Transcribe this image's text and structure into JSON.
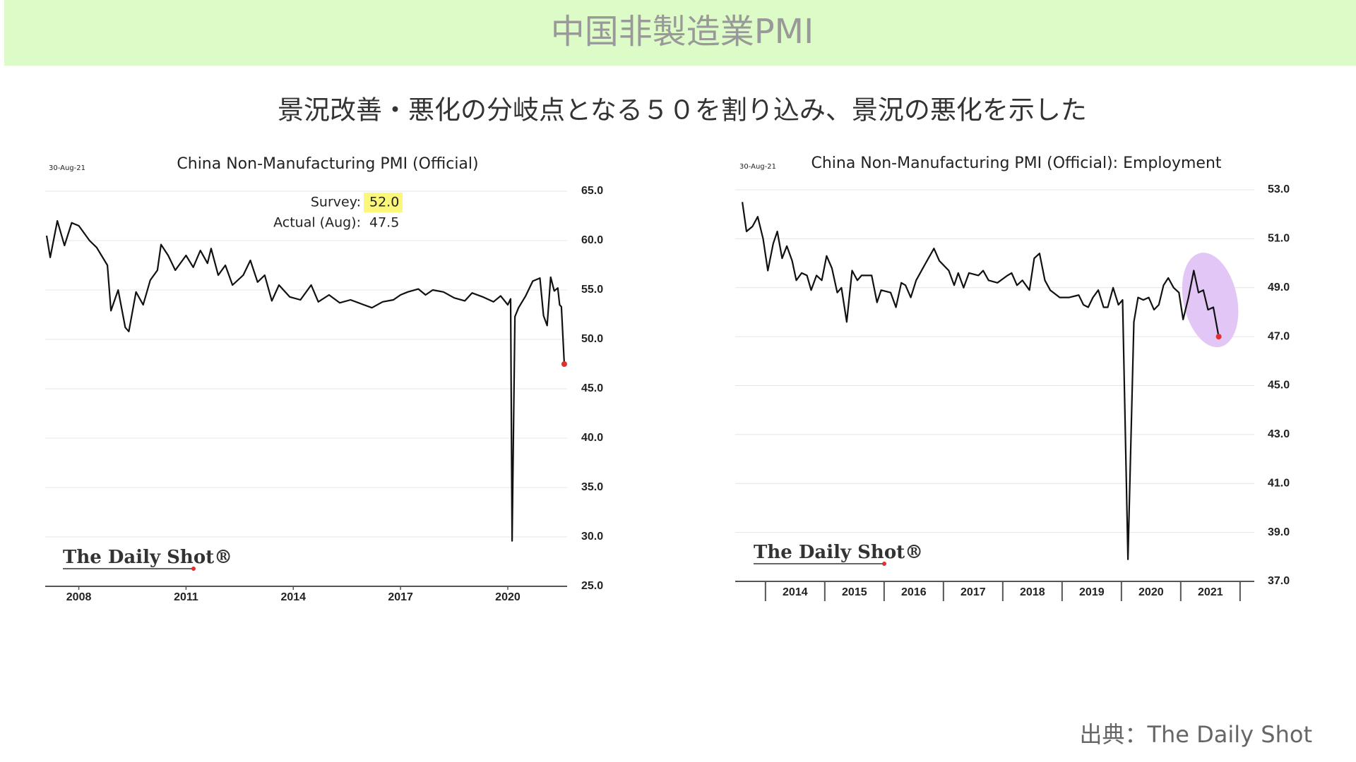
{
  "header": {
    "title": "中国非製造業PMI"
  },
  "subtitle": "景況改善・悪化の分岐点となる５０を割り込み、景況の悪化を示した",
  "source": "出典：The Daily Shot",
  "chart_data": [
    {
      "type": "line",
      "title": "China Non-Manufacturing PMI (Official)",
      "date_label": "30-Aug-21",
      "watermark": "The Daily Shot®",
      "annotations": [
        {
          "label": "Survey:",
          "value": "52.0"
        },
        {
          "label": "Actual (Aug):",
          "value": "47.5"
        }
      ],
      "x": [
        2007.1,
        2007.2,
        2007.4,
        2007.6,
        2007.8,
        2008.0,
        2008.3,
        2008.5,
        2008.8,
        2008.9,
        2009.1,
        2009.3,
        2009.4,
        2009.6,
        2009.8,
        2010.0,
        2010.2,
        2010.3,
        2010.5,
        2010.7,
        2010.9,
        2011.0,
        2011.2,
        2011.4,
        2011.6,
        2011.7,
        2011.9,
        2012.1,
        2012.3,
        2012.6,
        2012.8,
        2013.0,
        2013.2,
        2013.4,
        2013.6,
        2013.9,
        2014.2,
        2014.5,
        2014.7,
        2015.0,
        2015.3,
        2015.6,
        2015.9,
        2016.2,
        2016.5,
        2016.8,
        2017.0,
        2017.2,
        2017.5,
        2017.7,
        2017.9,
        2018.2,
        2018.5,
        2018.8,
        2019.0,
        2019.3,
        2019.6,
        2019.8,
        2020.0,
        2020.08,
        2020.12,
        2020.2,
        2020.3,
        2020.5,
        2020.7,
        2020.9,
        2021.0,
        2021.1,
        2021.2,
        2021.3,
        2021.4,
        2021.45,
        2021.5,
        2021.58
      ],
      "series": [
        {
          "name": "China Non-Manufacturing PMI",
          "color": "#111111",
          "values": [
            60.5,
            58.3,
            62,
            59.5,
            61.8,
            61.5,
            60,
            59.3,
            57.5,
            52.9,
            55,
            51.2,
            50.8,
            54.8,
            53.5,
            56,
            57,
            59.6,
            58.5,
            57,
            58,
            58.5,
            57.3,
            59,
            57.7,
            59.2,
            56.5,
            57.5,
            55.5,
            56.5,
            58,
            55.8,
            56.5,
            53.9,
            55.5,
            54.3,
            54,
            55.5,
            53.8,
            54.5,
            53.7,
            54,
            53.6,
            53.2,
            53.8,
            54,
            54.5,
            54.8,
            55.1,
            54.5,
            55,
            54.8,
            54.2,
            53.9,
            54.7,
            54.3,
            53.8,
            54.4,
            53.5,
            54.1,
            29.6,
            52.3,
            53.2,
            54.4,
            55.9,
            56.2,
            52.4,
            51.4,
            56.3,
            54.9,
            55.2,
            53.5,
            53.3,
            47.5
          ]
        }
      ],
      "xlim": [
        2007.06,
        2021.66
      ],
      "xticks": [
        2008,
        2011,
        2014,
        2017,
        2020
      ],
      "ylim": [
        25,
        65
      ],
      "yticks": [
        {
          "value": 25,
          "label": "25.0"
        },
        {
          "value": 30,
          "label": "30.0"
        },
        {
          "value": 35,
          "label": "35.0"
        },
        {
          "value": 40,
          "label": "40.0"
        },
        {
          "value": 45,
          "label": "45.0"
        },
        {
          "value": 50,
          "label": "50.0"
        },
        {
          "value": 55,
          "label": "55.0"
        },
        {
          "value": 60,
          "label": "60.0"
        },
        {
          "value": 65,
          "label": "65.0"
        }
      ],
      "grid": true,
      "last_point_color": "#e03030"
    },
    {
      "type": "line",
      "title": "China Non-Manufacturing PMI (Official): Employment",
      "date_label": "30-Aug-21",
      "watermark": "The Daily Shot®",
      "x": [
        2013.61,
        2013.68,
        2013.78,
        2013.87,
        2013.96,
        2014.04,
        2014.13,
        2014.2,
        2014.28,
        2014.36,
        2014.45,
        2014.52,
        2014.61,
        2014.7,
        2014.77,
        2014.86,
        2014.95,
        2015.03,
        2015.12,
        2015.21,
        2015.28,
        2015.37,
        2015.46,
        2015.55,
        2015.62,
        2015.79,
        2015.88,
        2015.95,
        2016.11,
        2016.2,
        2016.29,
        2016.36,
        2016.45,
        2016.54,
        2016.7,
        2016.84,
        2016.93,
        2017.09,
        2017.18,
        2017.25,
        2017.34,
        2017.43,
        2017.59,
        2017.67,
        2017.76,
        2017.91,
        2018.08,
        2018.15,
        2018.24,
        2018.33,
        2018.45,
        2018.53,
        2018.62,
        2018.71,
        2018.8,
        2018.96,
        2019.12,
        2019.28,
        2019.36,
        2019.44,
        2019.52,
        2019.61,
        2019.7,
        2019.77,
        2019.86,
        2019.95,
        2020.02,
        2020.11,
        2020.21,
        2020.28,
        2020.37,
        2020.46,
        2020.55,
        2020.63,
        2020.71,
        2020.79,
        2020.88,
        2020.97,
        2021.04,
        2021.13,
        2021.22,
        2021.3,
        2021.38,
        2021.46,
        2021.55,
        2021.64
      ],
      "series": [
        {
          "name": "Employment",
          "color": "#111111",
          "values": [
            52.5,
            51.3,
            51.5,
            51.9,
            51.0,
            49.7,
            50.8,
            51.3,
            50.2,
            50.7,
            50.1,
            49.3,
            49.6,
            49.5,
            48.9,
            49.5,
            49.3,
            50.3,
            49.8,
            48.8,
            49.0,
            47.6,
            49.7,
            49.3,
            49.5,
            49.5,
            48.4,
            48.9,
            48.8,
            48.2,
            49.2,
            49.1,
            48.6,
            49.3,
            50.0,
            50.6,
            50.1,
            49.7,
            49.1,
            49.6,
            49.0,
            49.6,
            49.5,
            49.7,
            49.3,
            49.2,
            49.5,
            49.6,
            49.1,
            49.3,
            48.9,
            50.2,
            50.4,
            49.3,
            48.9,
            48.6,
            48.6,
            48.7,
            48.3,
            48.2,
            48.6,
            48.9,
            48.2,
            48.2,
            49.0,
            48.3,
            48.5,
            37.9,
            47.6,
            48.6,
            48.5,
            48.6,
            48.1,
            48.3,
            49.1,
            49.4,
            49.0,
            48.8,
            47.7,
            48.6,
            49.7,
            48.8,
            48.9,
            48.1,
            48.2,
            47.0
          ]
        }
      ],
      "xlim": [
        2013.49,
        2022.24
      ],
      "xticks": [
        {
          "value": 2014.5,
          "label": "2014"
        },
        {
          "value": 2015.5,
          "label": "2015"
        },
        {
          "value": 2016.5,
          "label": "2016"
        },
        {
          "value": 2017.5,
          "label": "2017"
        },
        {
          "value": 2018.5,
          "label": "2018"
        },
        {
          "value": 2019.5,
          "label": "2019"
        },
        {
          "value": 2020.5,
          "label": "2020"
        },
        {
          "value": 2021.5,
          "label": "2021"
        }
      ],
      "ylim": [
        37,
        53
      ],
      "yticks": [
        {
          "value": 37,
          "label": "37.0"
        },
        {
          "value": 39,
          "label": "39.0"
        },
        {
          "value": 41,
          "label": "41.0"
        },
        {
          "value": 43,
          "label": "43.0"
        },
        {
          "value": 45,
          "label": "45.0"
        },
        {
          "value": 47,
          "label": "47.0"
        },
        {
          "value": 49,
          "label": "49.0"
        },
        {
          "value": 51,
          "label": "51.0"
        },
        {
          "value": 53,
          "label": "53.0"
        }
      ],
      "grid": true,
      "last_point_color": "#e03030",
      "highlight_color": "#e2c6f6"
    }
  ]
}
